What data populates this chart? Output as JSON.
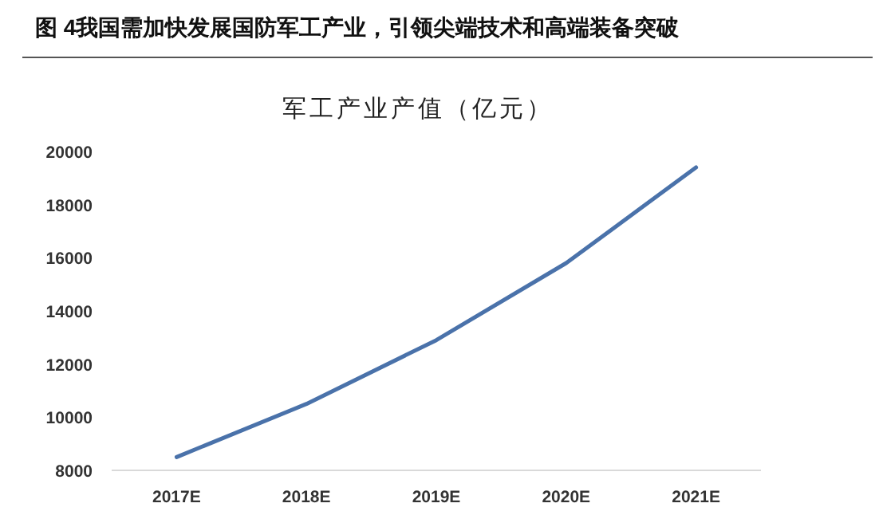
{
  "chart_data": {
    "type": "line",
    "title": "图 4我国需加快发展国防军工产业，引领尖端技术和高端装备突破",
    "subtitle": "军工产业产值（亿元）",
    "categories": [
      "2017E",
      "2018E",
      "2019E",
      "2020E",
      "2021E"
    ],
    "series": [
      {
        "color": "#4a72aa",
        "values": [
          8500,
          10500,
          12900,
          15800,
          19400
        ]
      }
    ],
    "ylim": [
      8000,
      20000
    ],
    "yticks": [
      8000,
      10000,
      12000,
      14000,
      16000,
      18000,
      20000
    ],
    "grid": false,
    "marker": "none",
    "line_style": "solid"
  }
}
